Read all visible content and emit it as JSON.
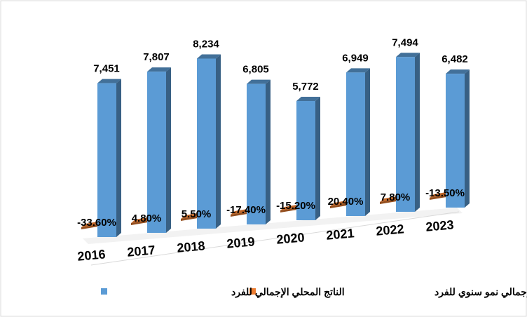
{
  "chart_data": {
    "type": "bar",
    "categories": [
      "2016",
      "2017",
      "2018",
      "2019",
      "2020",
      "2021",
      "2022",
      "2023"
    ],
    "series": [
      {
        "name": "الناتج المحلي الإجمالي للفرد",
        "values": [
          7451,
          7807,
          8234,
          6805,
          5772,
          6949,
          7494,
          6482
        ],
        "labels": [
          "7,451",
          "7,807",
          "8,234",
          "6,805",
          "5,772",
          "6,949",
          "7,494",
          "6,482"
        ],
        "color": "#5B9BD5"
      },
      {
        "name": "الناتج المحلي الإجمالي نمو سنوي للفرد",
        "values": [
          -33.6,
          4.8,
          5.5,
          -17.4,
          -15.2,
          20.4,
          7.8,
          -13.5
        ],
        "labels": [
          "-33.60%",
          "4.80%",
          "5.50%",
          "-17.40%",
          "-15.20%",
          "20.40%",
          "7.80%",
          "-13.50%"
        ],
        "color": "#ED7D31"
      }
    ],
    "ylim": [
      0,
      9000
    ],
    "grid": false,
    "legend": "bottom",
    "style": "3d-column"
  }
}
